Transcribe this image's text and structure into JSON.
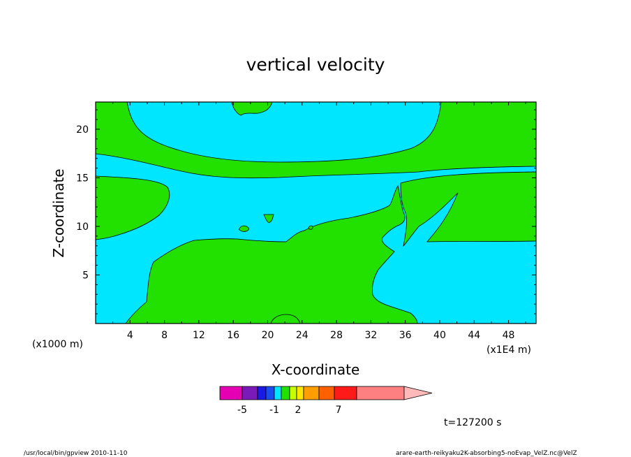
{
  "chart_data": {
    "type": "contour",
    "title": "vertical velocity",
    "xlabel": "X-coordinate",
    "ylabel": "Z-coordinate",
    "x_unit_label": "(x1E4 m)",
    "z_unit_label": "(x1000 m)",
    "x_ticks": [
      4,
      8,
      12,
      16,
      20,
      24,
      28,
      32,
      36,
      40,
      44,
      48
    ],
    "y_ticks": [
      5,
      10,
      15,
      20
    ],
    "xlim": [
      0,
      51.2
    ],
    "ylim": [
      0,
      22.8
    ],
    "time_label": "t=127200 s",
    "colorbar": {
      "colors": [
        "#e600b4",
        "#7a1ab8",
        "#1a1ae6",
        "#1a4df0",
        "#00e6ff",
        "#22e000",
        "#c8ff00",
        "#ffe600",
        "#ff9e00",
        "#ff6000",
        "#ff1a1a",
        "#ff8080",
        "#ffb9b9"
      ],
      "tick_labels": [
        "-5",
        "-1",
        "2",
        "7"
      ]
    },
    "fill_colors": {
      "background": "#00e6ff",
      "region": "#22e000"
    }
  },
  "footer": {
    "left": "/usr/local/bin/gpview   2010-11-10",
    "right": "arare-earth-reikyaku2K-absorbing5-noEvap_VelZ.nc@VelZ"
  }
}
